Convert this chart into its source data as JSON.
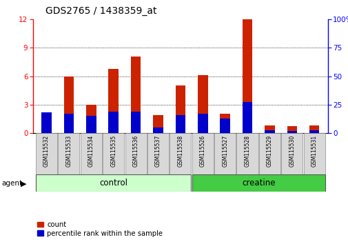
{
  "title": "GDS2765 / 1438359_at",
  "samples": [
    "GSM115532",
    "GSM115533",
    "GSM115534",
    "GSM115535",
    "GSM115536",
    "GSM115537",
    "GSM115538",
    "GSM115526",
    "GSM115527",
    "GSM115528",
    "GSM115529",
    "GSM115530",
    "GSM115531"
  ],
  "count_values": [
    0.7,
    6.0,
    3.0,
    6.8,
    8.1,
    1.9,
    5.0,
    6.1,
    2.0,
    12.0,
    0.8,
    0.7,
    0.8
  ],
  "percentile_values": [
    18.0,
    17.0,
    15.0,
    19.0,
    19.0,
    5.0,
    16.0,
    17.0,
    13.0,
    27.0,
    2.5,
    1.5,
    2.5
  ],
  "count_color": "#cc2200",
  "percentile_color": "#0000cc",
  "ylim_left": [
    0,
    12
  ],
  "ylim_right": [
    0,
    100
  ],
  "yticks_left": [
    0,
    3,
    6,
    9,
    12
  ],
  "yticks_right": [
    0,
    25,
    50,
    75,
    100
  ],
  "title_fontsize": 10,
  "control_color_light": "#ccffcc",
  "creatine_color": "#44cc44",
  "n_control": 7,
  "n_creatine": 6
}
